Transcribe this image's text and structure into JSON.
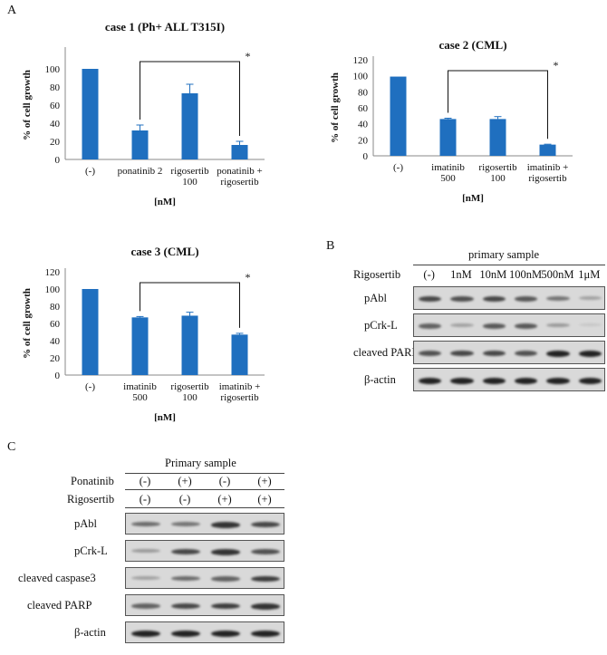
{
  "panel_labels": {
    "a": "A",
    "b": "B",
    "c": "C"
  },
  "chart_data": [
    {
      "type": "bar",
      "title": "case 1 (Ph+ ALL T315I)",
      "ylabel": "% of cell growth",
      "xlabel": "[nM]",
      "ylim": [
        0,
        120
      ],
      "yticks": [
        0,
        20,
        40,
        60,
        80,
        100
      ],
      "categories": [
        [
          "(-)"
        ],
        [
          "ponatinib 2"
        ],
        [
          "rigosertib",
          "100"
        ],
        [
          "ponatinib +",
          "rigosertib"
        ]
      ],
      "values": [
        100,
        32,
        73,
        16
      ],
      "errors": [
        0,
        6,
        10,
        4
      ],
      "significance": {
        "from": 1,
        "to": 3,
        "label": "*"
      },
      "color": "#1f6fbf"
    },
    {
      "type": "bar",
      "title": "case 2 (CML)",
      "ylabel": "% of cell growth",
      "xlabel": "[nM]",
      "ylim": [
        0,
        120
      ],
      "yticks": [
        0,
        20,
        40,
        60,
        80,
        100,
        120
      ],
      "categories": [
        [
          "(-)"
        ],
        [
          "imatinib",
          "500"
        ],
        [
          "rigosertib",
          "100"
        ],
        [
          "imatinib +",
          "rigosertib"
        ]
      ],
      "values": [
        99,
        46,
        46,
        14
      ],
      "errors": [
        0,
        1,
        3,
        0.5
      ],
      "significance": {
        "from": 1,
        "to": 3,
        "label": "*"
      },
      "color": "#1f6fbf"
    },
    {
      "type": "bar",
      "title": "case 3 (CML)",
      "ylabel": "% of cell growth",
      "xlabel": "[nM]",
      "ylim": [
        0,
        120
      ],
      "yticks": [
        0,
        20,
        40,
        60,
        80,
        100,
        120
      ],
      "categories": [
        [
          "(-)"
        ],
        [
          "imatinib",
          "500"
        ],
        [
          "rigosertib",
          "100"
        ],
        [
          "imatinib +",
          "rigosertib"
        ]
      ],
      "values": [
        100,
        67,
        69,
        47
      ],
      "errors": [
        0,
        1,
        4,
        1.5
      ],
      "significance": {
        "from": 1,
        "to": 3,
        "label": "*"
      },
      "color": "#1f6fbf"
    }
  ],
  "blot_b": {
    "header": "primary sample",
    "condition_label": "Rigosertib",
    "columns": [
      "(-)",
      "1nM",
      "10nM",
      "100nM",
      "500nM",
      "1μM"
    ],
    "rows": [
      {
        "label": "pAbl",
        "intensity": [
          0.8,
          0.75,
          0.8,
          0.7,
          0.55,
          0.3
        ]
      },
      {
        "label": "pCrk-L",
        "intensity": [
          0.65,
          0.3,
          0.7,
          0.7,
          0.35,
          0.1
        ]
      },
      {
        "label": "cleaved PARP",
        "intensity": [
          0.75,
          0.8,
          0.8,
          0.75,
          1.0,
          1.0
        ]
      },
      {
        "label": "β-actin",
        "intensity": [
          1.0,
          1.0,
          1.0,
          1.0,
          1.0,
          1.0
        ]
      }
    ]
  },
  "blot_c": {
    "header": "Primary sample",
    "conditions": [
      {
        "label": "Ponatinib",
        "values": [
          "(-)",
          "(+)",
          "(-)",
          "(+)"
        ]
      },
      {
        "label": "Rigosertib",
        "values": [
          "(-)",
          "(-)",
          "(+)",
          "(+)"
        ]
      }
    ],
    "rows": [
      {
        "label": "pAbl",
        "intensity": [
          0.6,
          0.55,
          0.9,
          0.8
        ]
      },
      {
        "label": "pCrk-L",
        "intensity": [
          0.35,
          0.8,
          0.9,
          0.75
        ]
      },
      {
        "label": "cleaved caspase3",
        "intensity": [
          0.3,
          0.6,
          0.65,
          0.85
        ]
      },
      {
        "label": "cleaved PARP",
        "intensity": [
          0.65,
          0.8,
          0.85,
          0.9
        ]
      },
      {
        "label": "β-actin",
        "intensity": [
          1.0,
          1.0,
          1.0,
          1.0
        ]
      }
    ]
  }
}
